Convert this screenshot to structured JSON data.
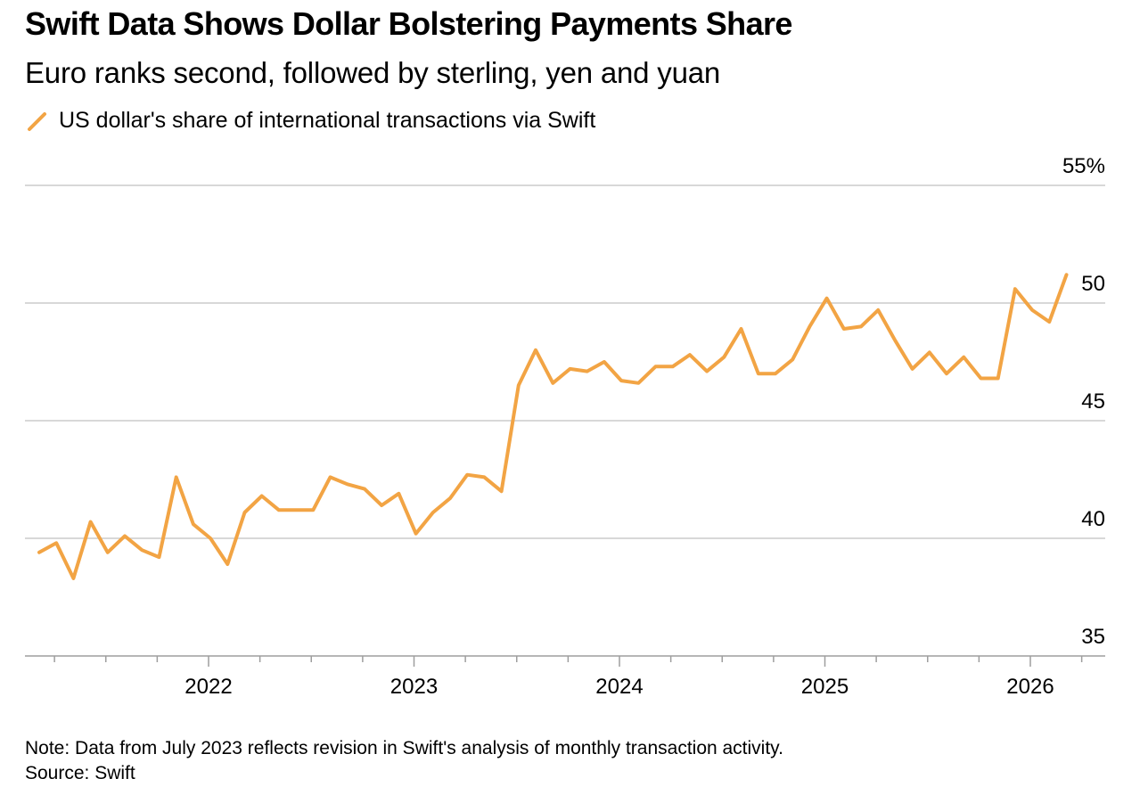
{
  "title": "Swift Data Shows Dollar Bolstering Payments Share",
  "subtitle": "Euro ranks second, followed by sterling, yen and yuan",
  "colors": {
    "series": "#f2a444",
    "grid": "#cccccc",
    "axis": "#9e9e9e",
    "text": "#000000"
  },
  "legend": {
    "icon": "diagonal-line-swatch",
    "label": "US dollar's share of international transactions via Swift"
  },
  "note": "Note: Data from July 2023 reflects revision in Swift's analysis of monthly transaction activity.",
  "source": "Source: Swift",
  "chart_data": {
    "type": "line",
    "title": "Swift Data Shows Dollar Bolstering Payments Share",
    "subtitle": "Euro ranks second, followed by sterling, yen and yuan",
    "xlabel": "",
    "ylabel": "",
    "ylim": [
      35,
      55
    ],
    "y_ticks": [
      {
        "value": 35,
        "label": "35"
      },
      {
        "value": 40,
        "label": "40"
      },
      {
        "value": 45,
        "label": "45"
      },
      {
        "value": 50,
        "label": "50"
      },
      {
        "value": 55,
        "label": "55%"
      }
    ],
    "x_range": [
      "2021-01",
      "2026-04"
    ],
    "x_ticks": [
      "2022",
      "2023",
      "2024",
      "2025",
      "2026"
    ],
    "grid": true,
    "legend_position": "top-left",
    "series": [
      {
        "name": "US dollar's share of international transactions via Swift",
        "points": [
          {
            "x": "2021-01",
            "y": 39.4
          },
          {
            "x": "2021-02",
            "y": 39.8
          },
          {
            "x": "2021-03",
            "y": 38.3
          },
          {
            "x": "2021-04",
            "y": 40.7
          },
          {
            "x": "2021-05",
            "y": 39.4
          },
          {
            "x": "2021-06",
            "y": 40.1
          },
          {
            "x": "2021-07",
            "y": 39.5
          },
          {
            "x": "2021-08",
            "y": 39.2
          },
          {
            "x": "2021-09",
            "y": 42.6
          },
          {
            "x": "2021-10",
            "y": 40.6
          },
          {
            "x": "2021-11",
            "y": 40.0
          },
          {
            "x": "2021-12",
            "y": 38.9
          },
          {
            "x": "2022-01",
            "y": 41.1
          },
          {
            "x": "2022-02",
            "y": 41.8
          },
          {
            "x": "2022-03",
            "y": 41.2
          },
          {
            "x": "2022-04",
            "y": 41.2
          },
          {
            "x": "2022-05",
            "y": 41.2
          },
          {
            "x": "2022-06",
            "y": 42.6
          },
          {
            "x": "2022-07",
            "y": 42.3
          },
          {
            "x": "2022-08",
            "y": 42.1
          },
          {
            "x": "2022-09",
            "y": 41.4
          },
          {
            "x": "2022-10",
            "y": 41.9
          },
          {
            "x": "2022-11",
            "y": 40.2
          },
          {
            "x": "2022-12",
            "y": 41.1
          },
          {
            "x": "2023-01",
            "y": 41.7
          },
          {
            "x": "2023-02",
            "y": 42.7
          },
          {
            "x": "2023-03",
            "y": 42.6
          },
          {
            "x": "2023-04",
            "y": 42.0
          },
          {
            "x": "2023-05",
            "y": 46.5
          },
          {
            "x": "2023-06",
            "y": 48.0
          },
          {
            "x": "2023-07",
            "y": 46.6
          },
          {
            "x": "2023-08",
            "y": 47.2
          },
          {
            "x": "2023-09",
            "y": 47.1
          },
          {
            "x": "2023-10",
            "y": 47.5
          },
          {
            "x": "2023-11",
            "y": 46.7
          },
          {
            "x": "2023-12",
            "y": 46.6
          },
          {
            "x": "2024-01",
            "y": 47.3
          },
          {
            "x": "2024-02",
            "y": 47.3
          },
          {
            "x": "2024-03",
            "y": 47.8
          },
          {
            "x": "2024-04",
            "y": 47.1
          },
          {
            "x": "2024-05",
            "y": 47.7
          },
          {
            "x": "2024-06",
            "y": 48.9
          },
          {
            "x": "2024-07",
            "y": 47.0
          },
          {
            "x": "2024-08",
            "y": 47.0
          },
          {
            "x": "2024-09",
            "y": 47.6
          },
          {
            "x": "2024-10",
            "y": 49.0
          },
          {
            "x": "2024-11",
            "y": 50.2
          },
          {
            "x": "2024-12",
            "y": 48.9
          },
          {
            "x": "2025-01",
            "y": 49.0
          },
          {
            "x": "2025-02",
            "y": 49.7
          },
          {
            "x": "2025-03",
            "y": 48.4
          },
          {
            "x": "2025-04",
            "y": 47.2
          },
          {
            "x": "2025-05",
            "y": 47.9
          },
          {
            "x": "2025-06",
            "y": 47.0
          },
          {
            "x": "2025-07",
            "y": 47.7
          },
          {
            "x": "2025-08",
            "y": 46.8
          },
          {
            "x": "2025-09",
            "y": 46.8
          },
          {
            "x": "2025-10",
            "y": 50.6
          },
          {
            "x": "2025-11",
            "y": 49.7
          },
          {
            "x": "2025-12",
            "y": 49.2
          },
          {
            "x": "2026-01",
            "y": 51.2
          }
        ]
      }
    ]
  }
}
